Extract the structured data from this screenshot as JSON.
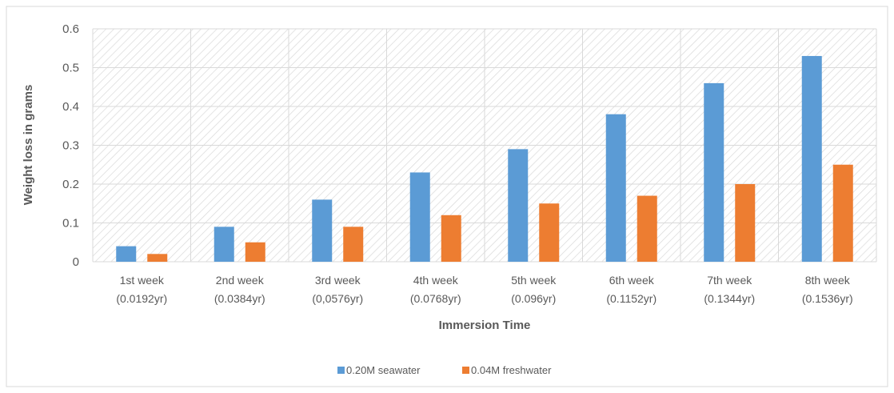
{
  "chart_data": {
    "type": "bar",
    "title": "",
    "xlabel": "Immersion Time",
    "ylabel": "Weight loss in grams",
    "ylim": [
      0,
      0.6
    ],
    "yticks": [
      "0",
      "0.1",
      "0.2",
      "0.3",
      "0.4",
      "0.5",
      "0.6"
    ],
    "categories": [
      [
        "1st week",
        "(0.0192yr)"
      ],
      [
        "2nd week",
        "(0.0384yr)"
      ],
      [
        "3rd week",
        "(0,0576yr)"
      ],
      [
        "4th week",
        "(0.0768yr)"
      ],
      [
        "5th week",
        "(0.096yr)"
      ],
      [
        "6th week",
        "(0.1152yr)"
      ],
      [
        "7th week",
        "(0.1344yr)"
      ],
      [
        "8th week",
        "(0.1536yr)"
      ]
    ],
    "series": [
      {
        "name": "0.20M seawater",
        "color": "#5B9BD5",
        "values": [
          0.04,
          0.09,
          0.16,
          0.23,
          0.29,
          0.38,
          0.46,
          0.53
        ]
      },
      {
        "name": "0.04M freshwater",
        "color": "#ED7D31",
        "values": [
          0.02,
          0.05,
          0.09,
          0.12,
          0.15,
          0.17,
          0.2,
          0.25
        ]
      }
    ],
    "grid": true,
    "legend": "bottom-center"
  }
}
